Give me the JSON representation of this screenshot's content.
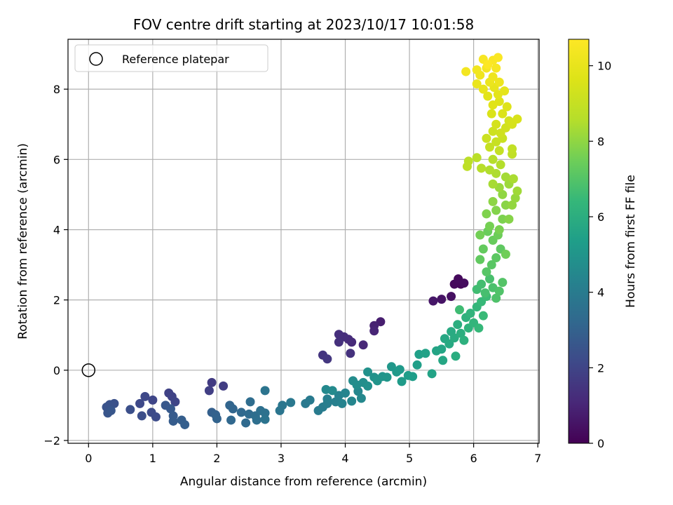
{
  "chart_data": {
    "type": "scatter",
    "title": "FOV centre drift starting at 2023/10/17 10:01:58",
    "xlabel": "Angular distance from reference (arcmin)",
    "ylabel": "Rotation from reference (arcmin)",
    "xlim": [
      -0.32,
      7.02
    ],
    "ylim": [
      -2.08,
      9.42
    ],
    "x_ticks": [
      0,
      1,
      2,
      3,
      4,
      5,
      6,
      7
    ],
    "y_ticks": [
      -2,
      0,
      2,
      4,
      6,
      8
    ],
    "grid": true,
    "legend": {
      "placement": "top-left",
      "entries": [
        "Reference platepar"
      ]
    },
    "reference_point": {
      "name": "Reference platepar",
      "x": 0,
      "y": 0
    },
    "colorbar": {
      "label": "Hours from first FF file",
      "range": [
        0,
        10.7
      ],
      "ticks": [
        0,
        2,
        4,
        6,
        8,
        10
      ],
      "colormap": "viridis"
    },
    "points": [
      {
        "x": 5.75,
        "y": 2.5,
        "h": 0.1
      },
      {
        "x": 5.8,
        "y": 2.45,
        "h": 0.15
      },
      {
        "x": 5.7,
        "y": 2.45,
        "h": 0.2
      },
      {
        "x": 5.76,
        "y": 2.6,
        "h": 0.25
      },
      {
        "x": 5.85,
        "y": 2.48,
        "h": 0.3
      },
      {
        "x": 5.65,
        "y": 2.1,
        "h": 0.4
      },
      {
        "x": 5.5,
        "y": 2.02,
        "h": 0.5
      },
      {
        "x": 5.37,
        "y": 1.97,
        "h": 0.6
      },
      {
        "x": 4.55,
        "y": 1.38,
        "h": 0.8
      },
      {
        "x": 4.45,
        "y": 1.27,
        "h": 0.9
      },
      {
        "x": 4.45,
        "y": 1.12,
        "h": 1.0
      },
      {
        "x": 4.28,
        "y": 0.72,
        "h": 1.1
      },
      {
        "x": 4.1,
        "y": 0.8,
        "h": 1.15
      },
      {
        "x": 4.05,
        "y": 0.88,
        "h": 1.2
      },
      {
        "x": 3.98,
        "y": 0.95,
        "h": 1.25
      },
      {
        "x": 3.9,
        "y": 1.02,
        "h": 1.3
      },
      {
        "x": 3.9,
        "y": 0.8,
        "h": 1.35
      },
      {
        "x": 4.08,
        "y": 0.48,
        "h": 1.4
      },
      {
        "x": 3.65,
        "y": 0.43,
        "h": 1.5
      },
      {
        "x": 3.72,
        "y": 0.32,
        "h": 1.55
      },
      {
        "x": 1.92,
        "y": -0.35,
        "h": 1.7
      },
      {
        "x": 2.1,
        "y": -0.45,
        "h": 1.75
      },
      {
        "x": 1.88,
        "y": -0.58,
        "h": 1.8
      },
      {
        "x": 1.25,
        "y": -0.65,
        "h": 1.9
      },
      {
        "x": 1.3,
        "y": -0.75,
        "h": 1.95
      },
      {
        "x": 1.35,
        "y": -0.9,
        "h": 2.0
      },
      {
        "x": 1.0,
        "y": -0.85,
        "h": 2.05
      },
      {
        "x": 0.88,
        "y": -0.75,
        "h": 2.1
      },
      {
        "x": 0.8,
        "y": -0.95,
        "h": 2.15
      },
      {
        "x": 0.98,
        "y": -1.2,
        "h": 2.2
      },
      {
        "x": 1.05,
        "y": -1.33,
        "h": 2.25
      },
      {
        "x": 0.83,
        "y": -1.3,
        "h": 2.3
      },
      {
        "x": 0.65,
        "y": -1.12,
        "h": 2.35
      },
      {
        "x": 0.4,
        "y": -0.95,
        "h": 2.4
      },
      {
        "x": 0.33,
        "y": -0.98,
        "h": 2.45
      },
      {
        "x": 0.28,
        "y": -1.05,
        "h": 2.5
      },
      {
        "x": 0.3,
        "y": -1.22,
        "h": 2.55
      },
      {
        "x": 0.35,
        "y": -1.15,
        "h": 2.6
      },
      {
        "x": 1.2,
        "y": -1.0,
        "h": 2.65
      },
      {
        "x": 1.28,
        "y": -1.1,
        "h": 2.7
      },
      {
        "x": 1.32,
        "y": -1.3,
        "h": 2.75
      },
      {
        "x": 1.32,
        "y": -1.45,
        "h": 2.8
      },
      {
        "x": 1.45,
        "y": -1.42,
        "h": 2.85
      },
      {
        "x": 1.5,
        "y": -1.55,
        "h": 2.9
      },
      {
        "x": 1.92,
        "y": -1.2,
        "h": 2.95
      },
      {
        "x": 1.98,
        "y": -1.27,
        "h": 3.0
      },
      {
        "x": 2.0,
        "y": -1.38,
        "h": 3.05
      },
      {
        "x": 2.2,
        "y": -1.0,
        "h": 3.1
      },
      {
        "x": 2.25,
        "y": -1.1,
        "h": 3.15
      },
      {
        "x": 2.22,
        "y": -1.42,
        "h": 3.2
      },
      {
        "x": 2.38,
        "y": -1.2,
        "h": 3.25
      },
      {
        "x": 2.45,
        "y": -1.5,
        "h": 3.3
      },
      {
        "x": 2.5,
        "y": -1.25,
        "h": 3.35
      },
      {
        "x": 2.52,
        "y": -0.9,
        "h": 3.4
      },
      {
        "x": 2.6,
        "y": -1.3,
        "h": 3.45
      },
      {
        "x": 2.62,
        "y": -1.42,
        "h": 3.5
      },
      {
        "x": 2.68,
        "y": -1.15,
        "h": 3.55
      },
      {
        "x": 2.75,
        "y": -1.22,
        "h": 3.6
      },
      {
        "x": 2.75,
        "y": -1.4,
        "h": 3.65
      },
      {
        "x": 2.75,
        "y": -0.58,
        "h": 3.7
      },
      {
        "x": 2.98,
        "y": -1.15,
        "h": 3.75
      },
      {
        "x": 3.02,
        "y": -1.0,
        "h": 3.8
      },
      {
        "x": 3.15,
        "y": -0.92,
        "h": 3.85
      },
      {
        "x": 3.38,
        "y": -0.95,
        "h": 3.9
      },
      {
        "x": 3.45,
        "y": -0.85,
        "h": 3.95
      },
      {
        "x": 3.58,
        "y": -1.15,
        "h": 4.0
      },
      {
        "x": 3.65,
        "y": -1.05,
        "h": 4.05
      },
      {
        "x": 3.72,
        "y": -0.95,
        "h": 4.1
      },
      {
        "x": 3.72,
        "y": -0.82,
        "h": 4.15
      },
      {
        "x": 3.85,
        "y": -0.9,
        "h": 4.2
      },
      {
        "x": 3.9,
        "y": -0.72,
        "h": 4.25
      },
      {
        "x": 3.95,
        "y": -0.95,
        "h": 4.3
      },
      {
        "x": 4.0,
        "y": -0.65,
        "h": 4.35
      },
      {
        "x": 4.1,
        "y": -0.88,
        "h": 4.4
      },
      {
        "x": 4.2,
        "y": -0.6,
        "h": 4.45
      },
      {
        "x": 4.25,
        "y": -0.8,
        "h": 4.5
      },
      {
        "x": 3.7,
        "y": -0.55,
        "h": 4.55
      },
      {
        "x": 3.8,
        "y": -0.58,
        "h": 4.6
      },
      {
        "x": 4.12,
        "y": -0.3,
        "h": 4.65
      },
      {
        "x": 4.18,
        "y": -0.42,
        "h": 4.7
      },
      {
        "x": 4.28,
        "y": -0.35,
        "h": 4.75
      },
      {
        "x": 4.35,
        "y": -0.45,
        "h": 4.8
      },
      {
        "x": 4.35,
        "y": -0.05,
        "h": 4.85
      },
      {
        "x": 4.45,
        "y": -0.2,
        "h": 4.9
      },
      {
        "x": 4.5,
        "y": -0.3,
        "h": 4.95
      },
      {
        "x": 4.58,
        "y": -0.18,
        "h": 5.0
      },
      {
        "x": 4.65,
        "y": -0.2,
        "h": 5.05
      },
      {
        "x": 4.72,
        "y": 0.1,
        "h": 5.1
      },
      {
        "x": 4.8,
        "y": -0.05,
        "h": 5.15
      },
      {
        "x": 4.85,
        "y": 0.02,
        "h": 5.2
      },
      {
        "x": 4.88,
        "y": -0.32,
        "h": 5.25
      },
      {
        "x": 4.98,
        "y": -0.15,
        "h": 5.3
      },
      {
        "x": 5.05,
        "y": -0.18,
        "h": 5.35
      },
      {
        "x": 5.12,
        "y": 0.15,
        "h": 5.4
      },
      {
        "x": 5.15,
        "y": 0.45,
        "h": 5.45
      },
      {
        "x": 5.25,
        "y": 0.48,
        "h": 5.5
      },
      {
        "x": 5.35,
        "y": -0.1,
        "h": 5.55
      },
      {
        "x": 5.42,
        "y": 0.55,
        "h": 5.6
      },
      {
        "x": 5.5,
        "y": 0.6,
        "h": 5.65
      },
      {
        "x": 5.52,
        "y": 0.28,
        "h": 5.7
      },
      {
        "x": 5.55,
        "y": 0.9,
        "h": 5.75
      },
      {
        "x": 5.62,
        "y": 0.75,
        "h": 5.8
      },
      {
        "x": 5.65,
        "y": 1.1,
        "h": 5.85
      },
      {
        "x": 5.7,
        "y": 0.92,
        "h": 5.9
      },
      {
        "x": 5.72,
        "y": 0.4,
        "h": 5.95
      },
      {
        "x": 5.75,
        "y": 1.3,
        "h": 6.0
      },
      {
        "x": 5.8,
        "y": 1.05,
        "h": 6.05
      },
      {
        "x": 5.85,
        "y": 0.85,
        "h": 6.1
      },
      {
        "x": 5.88,
        "y": 1.5,
        "h": 6.15
      },
      {
        "x": 5.92,
        "y": 1.2,
        "h": 6.2
      },
      {
        "x": 5.95,
        "y": 1.62,
        "h": 6.25
      },
      {
        "x": 6.0,
        "y": 1.35,
        "h": 6.3
      },
      {
        "x": 6.05,
        "y": 1.8,
        "h": 6.35
      },
      {
        "x": 6.08,
        "y": 1.2,
        "h": 6.4
      },
      {
        "x": 6.12,
        "y": 1.95,
        "h": 6.45
      },
      {
        "x": 6.15,
        "y": 1.55,
        "h": 6.5
      },
      {
        "x": 6.2,
        "y": 2.1,
        "h": 6.55
      },
      {
        "x": 5.78,
        "y": 1.72,
        "h": 6.6
      },
      {
        "x": 6.05,
        "y": 2.3,
        "h": 6.65
      },
      {
        "x": 6.12,
        "y": 2.45,
        "h": 6.7
      },
      {
        "x": 6.18,
        "y": 2.2,
        "h": 6.75
      },
      {
        "x": 6.25,
        "y": 2.6,
        "h": 6.8
      },
      {
        "x": 6.3,
        "y": 2.35,
        "h": 6.85
      },
      {
        "x": 6.35,
        "y": 2.05,
        "h": 6.9
      },
      {
        "x": 6.4,
        "y": 2.25,
        "h": 6.95
      },
      {
        "x": 6.45,
        "y": 2.5,
        "h": 7.0
      },
      {
        "x": 6.2,
        "y": 2.8,
        "h": 7.05
      },
      {
        "x": 6.28,
        "y": 3.0,
        "h": 7.1
      },
      {
        "x": 6.35,
        "y": 3.2,
        "h": 7.15
      },
      {
        "x": 6.42,
        "y": 3.45,
        "h": 7.2
      },
      {
        "x": 6.1,
        "y": 3.15,
        "h": 7.25
      },
      {
        "x": 6.15,
        "y": 3.45,
        "h": 7.3
      },
      {
        "x": 6.3,
        "y": 3.7,
        "h": 7.35
      },
      {
        "x": 6.22,
        "y": 3.95,
        "h": 7.4
      },
      {
        "x": 6.38,
        "y": 3.85,
        "h": 7.45
      },
      {
        "x": 6.5,
        "y": 3.3,
        "h": 7.5
      },
      {
        "x": 6.1,
        "y": 3.85,
        "h": 7.55
      },
      {
        "x": 6.25,
        "y": 4.1,
        "h": 7.6
      },
      {
        "x": 6.4,
        "y": 4.0,
        "h": 7.65
      },
      {
        "x": 6.45,
        "y": 4.3,
        "h": 7.7
      },
      {
        "x": 6.2,
        "y": 4.45,
        "h": 7.75
      },
      {
        "x": 6.35,
        "y": 4.55,
        "h": 7.8
      },
      {
        "x": 6.55,
        "y": 4.3,
        "h": 7.85
      },
      {
        "x": 6.5,
        "y": 4.7,
        "h": 7.9
      },
      {
        "x": 6.3,
        "y": 4.8,
        "h": 7.95
      },
      {
        "x": 6.45,
        "y": 5.0,
        "h": 8.0
      },
      {
        "x": 6.6,
        "y": 4.7,
        "h": 8.05
      },
      {
        "x": 6.65,
        "y": 4.9,
        "h": 8.1
      },
      {
        "x": 6.4,
        "y": 5.2,
        "h": 8.15
      },
      {
        "x": 6.55,
        "y": 5.3,
        "h": 8.2
      },
      {
        "x": 6.68,
        "y": 5.1,
        "h": 8.25
      },
      {
        "x": 6.5,
        "y": 5.5,
        "h": 8.3
      },
      {
        "x": 6.3,
        "y": 5.3,
        "h": 8.35
      },
      {
        "x": 6.62,
        "y": 5.45,
        "h": 8.4
      },
      {
        "x": 6.35,
        "y": 5.6,
        "h": 8.45
      },
      {
        "x": 6.25,
        "y": 5.7,
        "h": 8.5
      },
      {
        "x": 6.42,
        "y": 5.85,
        "h": 8.55
      },
      {
        "x": 6.3,
        "y": 6.0,
        "h": 8.6
      },
      {
        "x": 6.12,
        "y": 5.75,
        "h": 8.65
      },
      {
        "x": 6.05,
        "y": 6.05,
        "h": 8.7
      },
      {
        "x": 5.92,
        "y": 5.95,
        "h": 8.75
      },
      {
        "x": 5.9,
        "y": 5.8,
        "h": 8.8
      },
      {
        "x": 6.6,
        "y": 6.15,
        "h": 8.85
      },
      {
        "x": 6.6,
        "y": 6.3,
        "h": 8.9
      },
      {
        "x": 6.4,
        "y": 6.25,
        "h": 8.95
      },
      {
        "x": 6.25,
        "y": 6.35,
        "h": 9.0
      },
      {
        "x": 6.35,
        "y": 6.5,
        "h": 9.05
      },
      {
        "x": 6.45,
        "y": 6.6,
        "h": 9.1
      },
      {
        "x": 6.2,
        "y": 6.6,
        "h": 9.15
      },
      {
        "x": 6.3,
        "y": 6.8,
        "h": 9.2
      },
      {
        "x": 6.42,
        "y": 6.75,
        "h": 9.25
      },
      {
        "x": 6.5,
        "y": 6.9,
        "h": 9.3
      },
      {
        "x": 6.55,
        "y": 7.1,
        "h": 9.35
      },
      {
        "x": 6.35,
        "y": 7.0,
        "h": 9.4
      },
      {
        "x": 6.6,
        "y": 7.0,
        "h": 9.45
      },
      {
        "x": 6.68,
        "y": 7.15,
        "h": 9.5
      },
      {
        "x": 6.28,
        "y": 7.3,
        "h": 9.55
      },
      {
        "x": 6.45,
        "y": 7.3,
        "h": 9.6
      },
      {
        "x": 6.52,
        "y": 7.5,
        "h": 9.65
      },
      {
        "x": 6.4,
        "y": 7.65,
        "h": 9.7
      },
      {
        "x": 6.3,
        "y": 7.55,
        "h": 9.75
      },
      {
        "x": 6.22,
        "y": 7.8,
        "h": 9.8
      },
      {
        "x": 6.38,
        "y": 7.85,
        "h": 9.85
      },
      {
        "x": 6.48,
        "y": 7.95,
        "h": 9.9
      },
      {
        "x": 6.32,
        "y": 8.05,
        "h": 9.95
      },
      {
        "x": 6.15,
        "y": 8.0,
        "h": 10.0
      },
      {
        "x": 6.05,
        "y": 8.15,
        "h": 10.05
      },
      {
        "x": 6.25,
        "y": 8.2,
        "h": 10.1
      },
      {
        "x": 6.4,
        "y": 8.2,
        "h": 10.15
      },
      {
        "x": 6.3,
        "y": 8.35,
        "h": 10.2
      },
      {
        "x": 6.1,
        "y": 8.4,
        "h": 10.25
      },
      {
        "x": 6.05,
        "y": 8.55,
        "h": 10.3
      },
      {
        "x": 5.88,
        "y": 8.5,
        "h": 10.35
      },
      {
        "x": 6.2,
        "y": 8.6,
        "h": 10.4
      },
      {
        "x": 6.35,
        "y": 8.6,
        "h": 10.45
      },
      {
        "x": 6.15,
        "y": 8.85,
        "h": 10.5
      },
      {
        "x": 6.3,
        "y": 8.82,
        "h": 10.55
      },
      {
        "x": 6.38,
        "y": 8.9,
        "h": 10.6
      },
      {
        "x": 6.22,
        "y": 8.7,
        "h": 10.65
      }
    ]
  }
}
